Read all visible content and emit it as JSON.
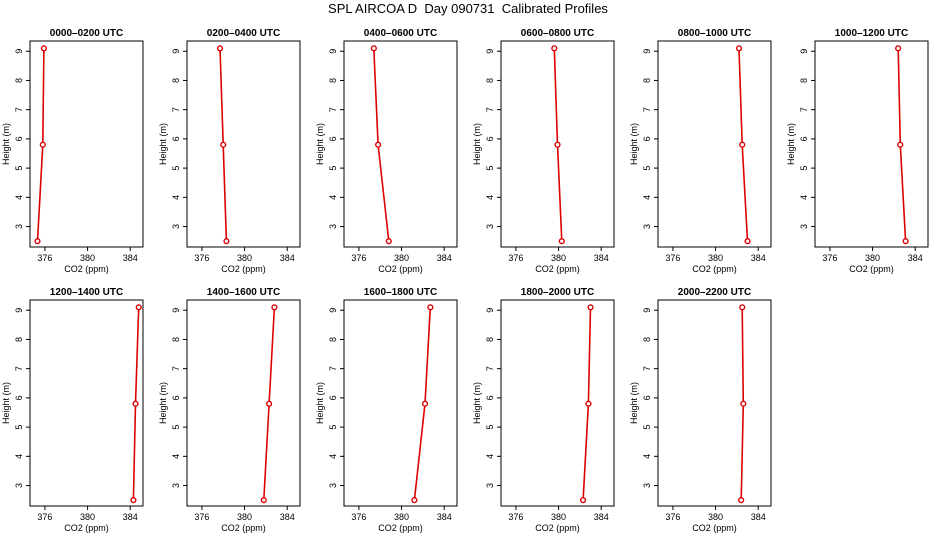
{
  "figure_title": "SPL AIRCOA D  Day 090731  Calibrated Profiles",
  "colors": {
    "line": "#dd0000",
    "axis": "#000000"
  },
  "chart_data": [
    {
      "type": "line",
      "title": "0000–0200 UTC",
      "xlabel": "CO2 (ppm)",
      "ylabel": "Height (m)",
      "xlim": [
        374.6,
        385.2
      ],
      "ylim": [
        2.3,
        9.35
      ],
      "xticks": [
        "376",
        "380",
        "384"
      ],
      "yticks": [
        "3",
        "4",
        "5",
        "6",
        "7",
        "8",
        "9"
      ],
      "series": [
        {
          "x": [
            375.9,
            375.8,
            375.3
          ],
          "y": [
            9.1,
            5.8,
            2.5
          ]
        }
      ]
    },
    {
      "type": "line",
      "title": "0200–0400 UTC",
      "xlabel": "CO2 (ppm)",
      "ylabel": "Height (m)",
      "xlim": [
        374.6,
        385.2
      ],
      "ylim": [
        2.3,
        9.35
      ],
      "xticks": [
        "376",
        "380",
        "384"
      ],
      "yticks": [
        "3",
        "4",
        "5",
        "6",
        "7",
        "8",
        "9"
      ],
      "series": [
        {
          "x": [
            377.7,
            378.0,
            378.3
          ],
          "y": [
            9.1,
            5.8,
            2.5
          ]
        }
      ]
    },
    {
      "type": "line",
      "title": "0400–0600 UTC",
      "xlabel": "CO2 (ppm)",
      "ylabel": "Height (m)",
      "xlim": [
        374.6,
        385.2
      ],
      "ylim": [
        2.3,
        9.35
      ],
      "xticks": [
        "376",
        "380",
        "384"
      ],
      "yticks": [
        "3",
        "4",
        "5",
        "6",
        "7",
        "8",
        "9"
      ],
      "series": [
        {
          "x": [
            377.4,
            377.8,
            378.8
          ],
          "y": [
            9.1,
            5.8,
            2.5
          ]
        }
      ]
    },
    {
      "type": "line",
      "title": "0600–0800 UTC",
      "xlabel": "CO2 (ppm)",
      "ylabel": "Height (m)",
      "xlim": [
        374.6,
        385.2
      ],
      "ylim": [
        2.3,
        9.35
      ],
      "xticks": [
        "376",
        "380",
        "384"
      ],
      "yticks": [
        "3",
        "4",
        "5",
        "6",
        "7",
        "8",
        "9"
      ],
      "series": [
        {
          "x": [
            379.6,
            379.9,
            380.3
          ],
          "y": [
            9.1,
            5.8,
            2.5
          ]
        }
      ]
    },
    {
      "type": "line",
      "title": "0800–1000 UTC",
      "xlabel": "CO2 (ppm)",
      "ylabel": "Height (m)",
      "xlim": [
        374.6,
        385.2
      ],
      "ylim": [
        2.3,
        9.35
      ],
      "xticks": [
        "376",
        "380",
        "384"
      ],
      "yticks": [
        "3",
        "4",
        "5",
        "6",
        "7",
        "8",
        "9"
      ],
      "series": [
        {
          "x": [
            382.2,
            382.5,
            383.0
          ],
          "y": [
            9.1,
            5.8,
            2.5
          ]
        }
      ]
    },
    {
      "type": "line",
      "title": "1000–1200 UTC",
      "xlabel": "CO2 (ppm)",
      "ylabel": "Height (m)",
      "xlim": [
        374.6,
        385.2
      ],
      "ylim": [
        2.3,
        9.35
      ],
      "xticks": [
        "376",
        "380",
        "384"
      ],
      "yticks": [
        "3",
        "4",
        "5",
        "6",
        "7",
        "8",
        "9"
      ],
      "series": [
        {
          "x": [
            382.4,
            382.6,
            383.1
          ],
          "y": [
            9.1,
            5.8,
            2.5
          ]
        }
      ]
    },
    {
      "type": "line",
      "title": "1200–1400 UTC",
      "xlabel": "CO2 (ppm)",
      "ylabel": "Height (m)",
      "xlim": [
        374.6,
        385.2
      ],
      "ylim": [
        2.3,
        9.35
      ],
      "xticks": [
        "376",
        "380",
        "384"
      ],
      "yticks": [
        "3",
        "4",
        "5",
        "6",
        "7",
        "8",
        "9"
      ],
      "series": [
        {
          "x": [
            384.8,
            384.5,
            384.3
          ],
          "y": [
            9.1,
            5.8,
            2.5
          ]
        }
      ]
    },
    {
      "type": "line",
      "title": "1400–1600 UTC",
      "xlabel": "CO2 (ppm)",
      "ylabel": "Height (m)",
      "xlim": [
        374.6,
        385.2
      ],
      "ylim": [
        2.3,
        9.35
      ],
      "xticks": [
        "376",
        "380",
        "384"
      ],
      "yticks": [
        "3",
        "4",
        "5",
        "6",
        "7",
        "8",
        "9"
      ],
      "series": [
        {
          "x": [
            382.8,
            382.3,
            381.8
          ],
          "y": [
            9.1,
            5.8,
            2.5
          ]
        }
      ]
    },
    {
      "type": "line",
      "title": "1600–1800 UTC",
      "xlabel": "CO2 (ppm)",
      "ylabel": "Height (m)",
      "xlim": [
        374.6,
        385.2
      ],
      "ylim": [
        2.3,
        9.35
      ],
      "xticks": [
        "376",
        "380",
        "384"
      ],
      "yticks": [
        "3",
        "4",
        "5",
        "6",
        "7",
        "8",
        "9"
      ],
      "series": [
        {
          "x": [
            382.7,
            382.2,
            381.2
          ],
          "y": [
            9.1,
            5.8,
            2.5
          ]
        }
      ]
    },
    {
      "type": "line",
      "title": "1800–2000 UTC",
      "xlabel": "CO2 (ppm)",
      "ylabel": "Height (m)",
      "xlim": [
        374.6,
        385.2
      ],
      "ylim": [
        2.3,
        9.35
      ],
      "xticks": [
        "376",
        "380",
        "384"
      ],
      "yticks": [
        "3",
        "4",
        "5",
        "6",
        "7",
        "8",
        "9"
      ],
      "series": [
        {
          "x": [
            383.0,
            382.8,
            382.3
          ],
          "y": [
            9.1,
            5.8,
            2.5
          ]
        }
      ]
    },
    {
      "type": "line",
      "title": "2000–2200 UTC",
      "xlabel": "CO2 (ppm)",
      "ylabel": "Height (m)",
      "xlim": [
        374.6,
        385.2
      ],
      "ylim": [
        2.3,
        9.35
      ],
      "xticks": [
        "376",
        "380",
        "384"
      ],
      "yticks": [
        "3",
        "4",
        "5",
        "6",
        "7",
        "8",
        "9"
      ],
      "series": [
        {
          "x": [
            382.5,
            382.6,
            382.4
          ],
          "y": [
            9.1,
            5.8,
            2.5
          ]
        }
      ]
    }
  ]
}
